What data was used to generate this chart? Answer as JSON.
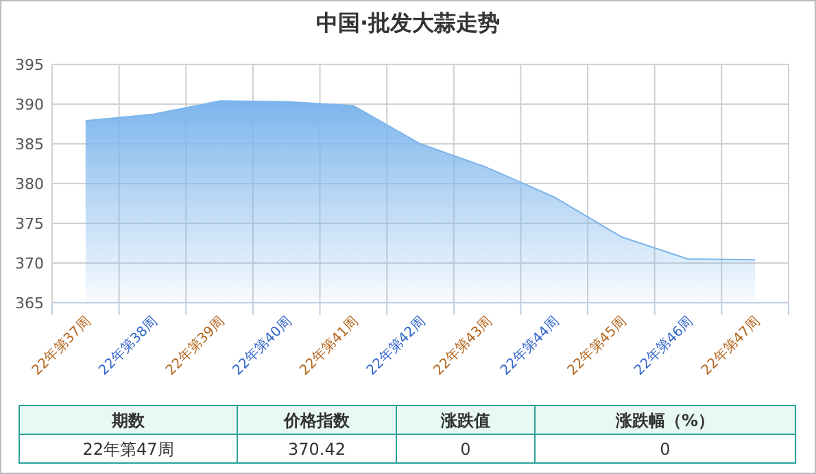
{
  "chart_data": {
    "type": "area",
    "title": "中国·批发大蒜走势",
    "categories": [
      "22年第37周",
      "22年第38周",
      "22年第39周",
      "22年第40周",
      "22年第41周",
      "22年第42周",
      "22年第43周",
      "22年第44周",
      "22年第45周",
      "22年第46周",
      "22年第47周"
    ],
    "series": [
      {
        "color": "#7cb5ec",
        "values": [
          387.9,
          388.7,
          390.4,
          390.3,
          389.8,
          385.0,
          382.0,
          378.3,
          373.3,
          370.5,
          370.4
        ]
      }
    ],
    "ylim": [
      365,
      395
    ],
    "yticks": [
      365,
      370,
      375,
      380,
      385,
      390,
      395
    ],
    "grid": true,
    "annotations": [
      "期数",
      "价格指数",
      "涨跌值",
      "涨跌幅（%）",
      "22年第47周",
      "370.42",
      "0",
      "0"
    ]
  }
}
